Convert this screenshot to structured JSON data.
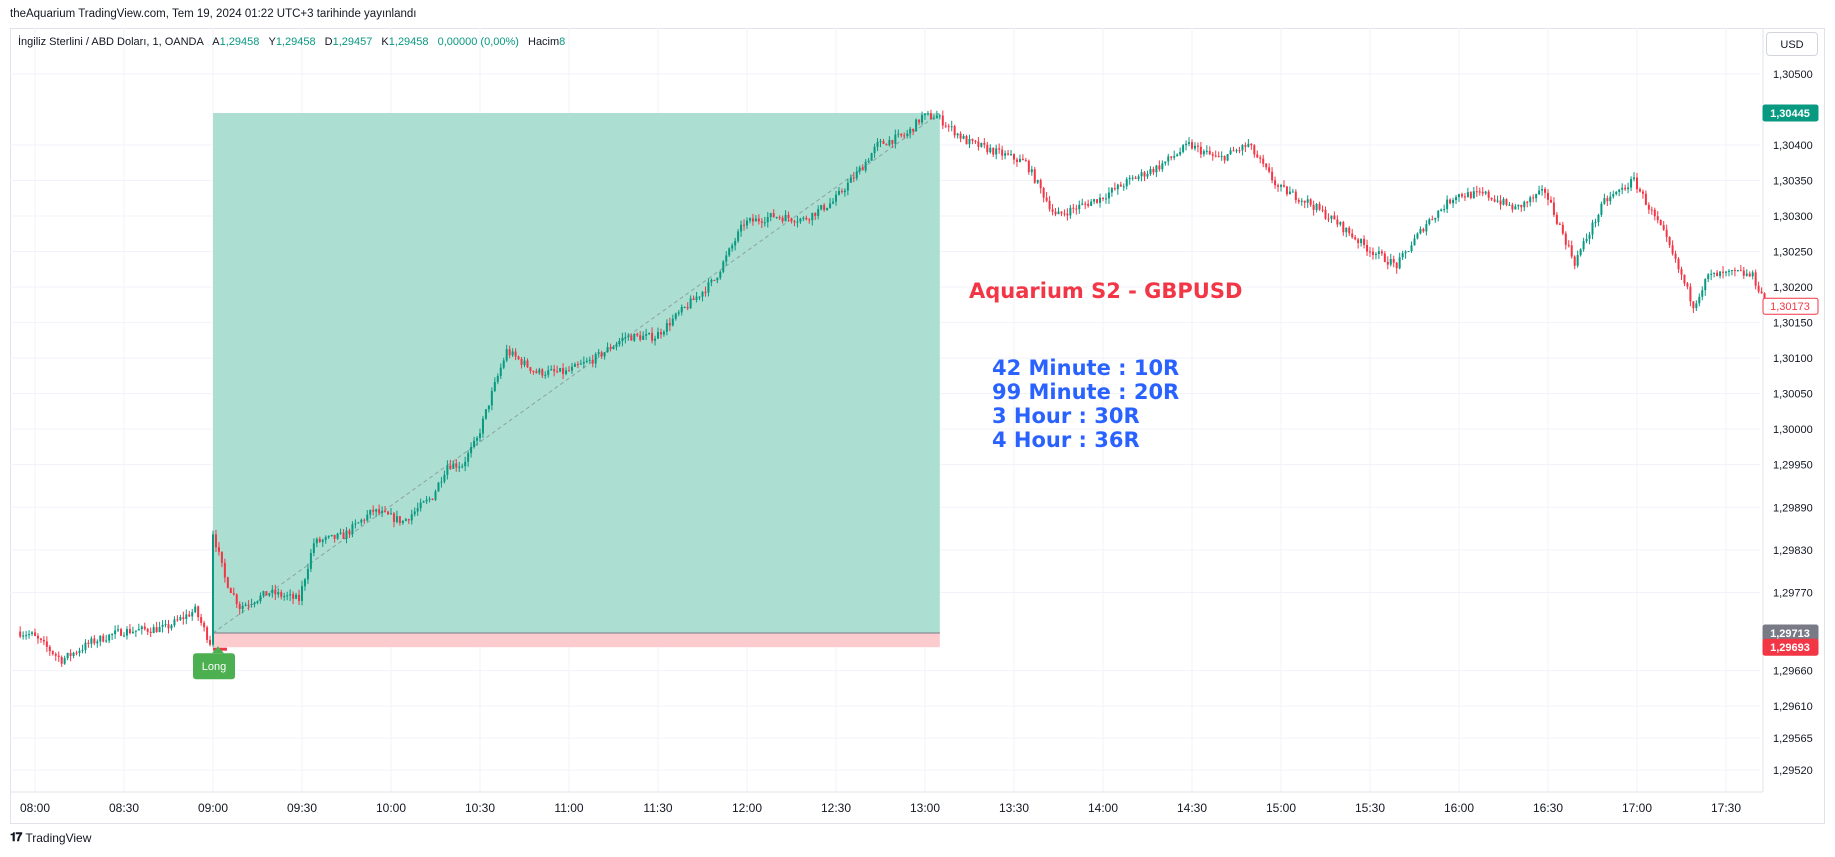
{
  "header": {
    "publish_text": "theAquarium TradingView.com, Tem 19, 2024 01:22 UTC+3 tarihinde yayınlandı"
  },
  "legend": {
    "symbol": "İngiliz Sterlini / ABD Doları, 1, OANDA",
    "open_label": "A",
    "open": "1,29458",
    "high_label": "Y",
    "high": "1,29458",
    "low_label": "D",
    "low": "1,29457",
    "close_label": "K",
    "close": "1,29458",
    "change": "0,00000 (0,00%)",
    "volume_label": "Hacim",
    "volume": "8"
  },
  "currency_button": "USD",
  "branding": "TradingView",
  "colors": {
    "up": "#089981",
    "down": "#f23645",
    "profit_zone": "#a8dccf",
    "loss_zone": "#fccbcd",
    "title_text": "#f23645",
    "stat_text": "#2962ff",
    "grid": "#f0f3fa",
    "long_badge": "#4caf50",
    "current_price_tag": "#089981",
    "stop_tag": "#f23645",
    "entry_tag": "#787b86"
  },
  "chart_data": {
    "type": "candlestick",
    "symbol": "GBPUSD",
    "interval": "1",
    "y_ticks": [
      "1,30500",
      "1,30400",
      "1,30350",
      "1,30300",
      "1,30250",
      "1,30200",
      "1,30150",
      "1,30100",
      "1,30050",
      "1,30000",
      "1,29950",
      "1,29890",
      "1,29830",
      "1,29770",
      "1,29660",
      "1,29610",
      "1,29565",
      "1,29520"
    ],
    "x_ticks": [
      "08:00",
      "08:30",
      "09:00",
      "09:30",
      "10:00",
      "10:30",
      "11:00",
      "11:30",
      "12:00",
      "12:30",
      "13:00",
      "13:30",
      "14:00",
      "14:30",
      "15:00",
      "15:30",
      "16:00",
      "16:30",
      "17:00",
      "17:30"
    ],
    "grid": true,
    "price_path": [
      {
        "t": "07:55",
        "p": 1.29715
      },
      {
        "t": "08:00",
        "p": 1.2971
      },
      {
        "t": "08:10",
        "p": 1.29675
      },
      {
        "t": "08:20",
        "p": 1.297
      },
      {
        "t": "08:30",
        "p": 1.29715
      },
      {
        "t": "08:45",
        "p": 1.2972
      },
      {
        "t": "08:55",
        "p": 1.29745
      },
      {
        "t": "09:00",
        "p": 1.297
      },
      {
        "t": "09:01",
        "p": 1.29855
      },
      {
        "t": "09:05",
        "p": 1.2979
      },
      {
        "t": "09:10",
        "p": 1.2975
      },
      {
        "t": "09:20",
        "p": 1.2977
      },
      {
        "t": "09:30",
        "p": 1.2976
      },
      {
        "t": "09:35",
        "p": 1.2984
      },
      {
        "t": "09:45",
        "p": 1.2985
      },
      {
        "t": "09:55",
        "p": 1.29885
      },
      {
        "t": "10:05",
        "p": 1.2987
      },
      {
        "t": "10:15",
        "p": 1.29905
      },
      {
        "t": "10:20",
        "p": 1.2995
      },
      {
        "t": "10:25",
        "p": 1.2995
      },
      {
        "t": "10:30",
        "p": 1.29985
      },
      {
        "t": "10:35",
        "p": 1.3005
      },
      {
        "t": "10:40",
        "p": 1.3011
      },
      {
        "t": "10:50",
        "p": 1.3008
      },
      {
        "t": "11:00",
        "p": 1.3008
      },
      {
        "t": "11:10",
        "p": 1.301
      },
      {
        "t": "11:20",
        "p": 1.3013
      },
      {
        "t": "11:30",
        "p": 1.3013
      },
      {
        "t": "11:40",
        "p": 1.3017
      },
      {
        "t": "11:50",
        "p": 1.3021
      },
      {
        "t": "12:00",
        "p": 1.3029
      },
      {
        "t": "12:10",
        "p": 1.303
      },
      {
        "t": "12:20",
        "p": 1.30295
      },
      {
        "t": "12:30",
        "p": 1.3032
      },
      {
        "t": "12:40",
        "p": 1.3037
      },
      {
        "t": "12:45",
        "p": 1.304
      },
      {
        "t": "12:55",
        "p": 1.30415
      },
      {
        "t": "13:00",
        "p": 1.3044
      },
      {
        "t": "13:05",
        "p": 1.3044
      },
      {
        "t": "13:15",
        "p": 1.30405
      },
      {
        "t": "13:25",
        "p": 1.3039
      },
      {
        "t": "13:35",
        "p": 1.30375
      },
      {
        "t": "13:45",
        "p": 1.303
      },
      {
        "t": "14:00",
        "p": 1.30325
      },
      {
        "t": "14:10",
        "p": 1.3035
      },
      {
        "t": "14:20",
        "p": 1.3037
      },
      {
        "t": "14:30",
        "p": 1.304
      },
      {
        "t": "14:40",
        "p": 1.3038
      },
      {
        "t": "14:50",
        "p": 1.304
      },
      {
        "t": "15:00",
        "p": 1.3034
      },
      {
        "t": "15:10",
        "p": 1.3032
      },
      {
        "t": "15:20",
        "p": 1.3029
      },
      {
        "t": "15:30",
        "p": 1.30255
      },
      {
        "t": "15:40",
        "p": 1.3023
      },
      {
        "t": "15:50",
        "p": 1.3029
      },
      {
        "t": "16:00",
        "p": 1.3033
      },
      {
        "t": "16:10",
        "p": 1.3033
      },
      {
        "t": "16:20",
        "p": 1.3031
      },
      {
        "t": "16:30",
        "p": 1.30335
      },
      {
        "t": "16:40",
        "p": 1.30235
      },
      {
        "t": "16:50",
        "p": 1.3032
      },
      {
        "t": "17:00",
        "p": 1.3035
      },
      {
        "t": "17:10",
        "p": 1.30275
      },
      {
        "t": "17:20",
        "p": 1.30175
      },
      {
        "t": "17:25",
        "p": 1.30215
      },
      {
        "t": "17:35",
        "p": 1.3022
      },
      {
        "t": "17:40",
        "p": 1.30215
      },
      {
        "t": "17:45",
        "p": 1.30173
      }
    ],
    "position": {
      "type": "Long",
      "entry_time": "09:00",
      "end_time": "13:05",
      "entry_price": 1.29713,
      "target_price": 1.30445,
      "stop_price": 1.29693
    },
    "price_tags": {
      "current": "1,30445",
      "last": "1,30173",
      "entry": "1,29713",
      "stop": "1,29693"
    },
    "position_badge": "Long",
    "annotations": {
      "title": "Aquarium S2 - GBPUSD",
      "lines": [
        "42 Minute : 10R",
        "99 Minute : 20R",
        "3 Hour : 30R",
        "4 Hour : 36R"
      ]
    }
  }
}
